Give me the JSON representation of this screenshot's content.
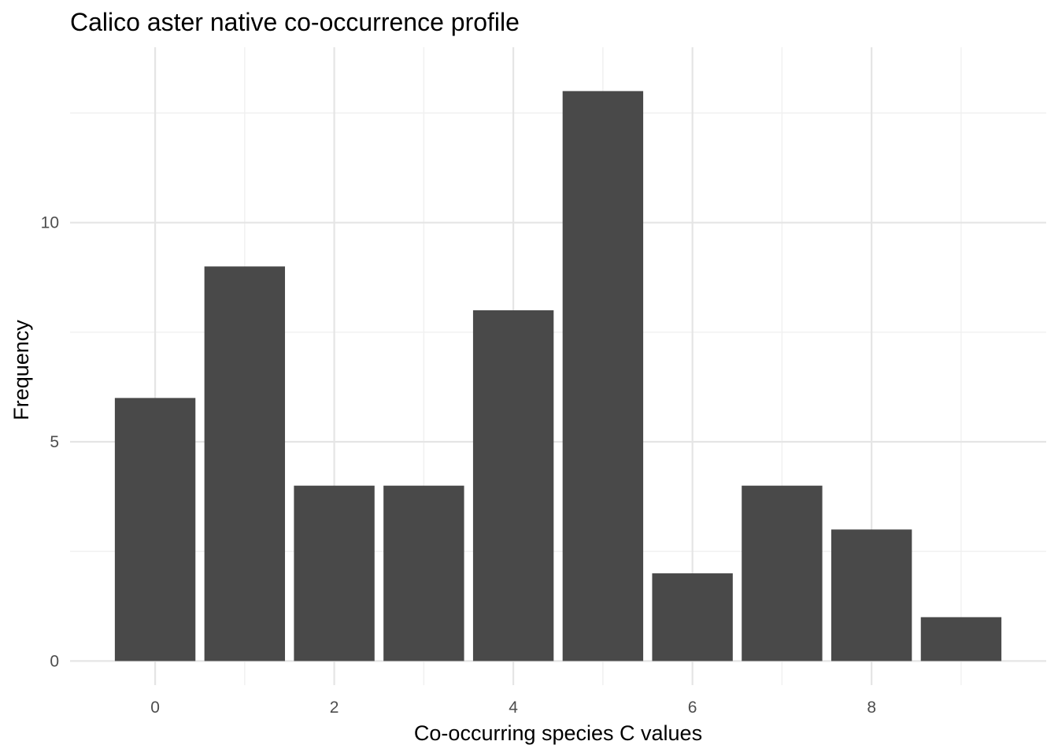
{
  "chart_data": {
    "type": "bar",
    "title": "Calico aster native co-occurrence profile",
    "xlabel": "Co-occurring species C values",
    "ylabel": "Frequency",
    "x": [
      0,
      1,
      2,
      3,
      4,
      5,
      6,
      7,
      8,
      9
    ],
    "values": [
      6,
      9,
      4,
      4,
      8,
      13,
      2,
      4,
      3,
      1
    ],
    "xlim": [
      -0.95,
      9.95
    ],
    "ylim": [
      -0.55,
      14
    ],
    "x_ticks": [
      0,
      2,
      4,
      6,
      8
    ],
    "x_tick_labels": [
      "0",
      "2",
      "4",
      "6",
      "8"
    ],
    "x_minor_ticks": [
      1,
      3,
      5,
      7,
      9
    ],
    "y_ticks": [
      0,
      5,
      10
    ],
    "y_tick_labels": [
      "0",
      "5",
      "10"
    ],
    "y_minor_ticks": [
      2.5,
      7.5,
      12.5
    ],
    "grid": true,
    "legend": "none",
    "bar_color": "#494949",
    "grid_color": "#e5e5e5",
    "background_color": "#ffffff"
  }
}
